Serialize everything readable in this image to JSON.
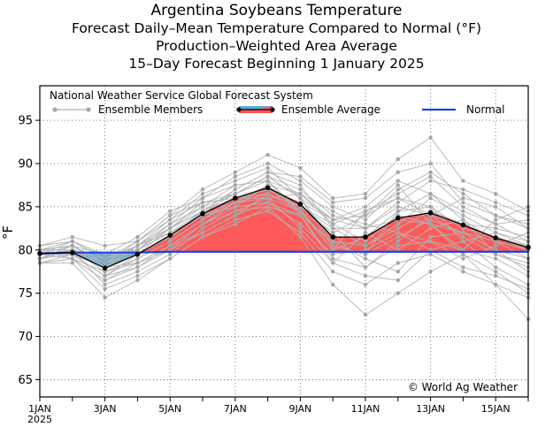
{
  "chart_data": {
    "type": "line",
    "title": "Argentina Soybeans Temperature",
    "subtitle_lines": [
      "Forecast Daily–Mean Temperature Compared to Normal (°F)",
      "Production–Weighted Area Average",
      "15–Day Forecast Beginning 1 January 2025"
    ],
    "source_label": "National Weather Service Global Forecast System",
    "legend": {
      "members": "Ensemble Members",
      "average": "Ensemble Average",
      "normal": "Normal"
    },
    "credit": "© World Ag Weather",
    "ylabel": "°F",
    "ylim": [
      63,
      99
    ],
    "yticks": [
      65,
      70,
      75,
      80,
      85,
      90,
      95
    ],
    "xlim": [
      1,
      16
    ],
    "xticks": [
      {
        "x": 1,
        "label": "1JAN",
        "label2": "2025"
      },
      {
        "x": 3,
        "label": "3JAN"
      },
      {
        "x": 5,
        "label": "5JAN"
      },
      {
        "x": 7,
        "label": "7JAN"
      },
      {
        "x": 9,
        "label": "9JAN"
      },
      {
        "x": 11,
        "label": "11JAN"
      },
      {
        "x": 13,
        "label": "13JAN"
      },
      {
        "x": 15,
        "label": "15JAN"
      }
    ],
    "x": [
      1,
      2,
      3,
      4,
      5,
      6,
      7,
      8,
      9,
      10,
      11,
      12,
      13,
      14,
      15,
      16
    ],
    "normal": [
      79.6,
      79.7,
      79.7,
      79.7,
      79.8,
      79.8,
      79.8,
      79.8,
      79.8,
      79.8,
      79.8,
      79.8,
      79.8,
      79.8,
      79.8,
      79.8
    ],
    "average": [
      79.6,
      79.7,
      77.9,
      79.5,
      81.7,
      84.2,
      86.0,
      87.2,
      85.3,
      81.5,
      81.5,
      83.7,
      84.3,
      82.9,
      81.4,
      80.3
    ],
    "members": [
      [
        79.0,
        80.5,
        78.0,
        80.5,
        82.5,
        85.5,
        86.5,
        88.0,
        84.5,
        80.0,
        84.5,
        86.5,
        88.5,
        85.0,
        83.0,
        81.0
      ],
      [
        79.5,
        79.0,
        76.5,
        78.5,
        80.0,
        83.0,
        84.5,
        86.0,
        86.5,
        83.0,
        81.0,
        84.0,
        83.0,
        79.5,
        77.5,
        75.0
      ],
      [
        80.0,
        81.0,
        79.0,
        80.0,
        83.0,
        86.0,
        88.5,
        90.0,
        88.0,
        85.0,
        83.5,
        87.0,
        89.0,
        86.5,
        84.0,
        82.5
      ],
      [
        78.5,
        79.5,
        77.0,
        78.0,
        80.5,
        82.0,
        84.0,
        85.5,
        84.0,
        79.0,
        78.0,
        80.5,
        81.0,
        80.0,
        79.0,
        77.0
      ],
      [
        79.5,
        80.0,
        78.5,
        79.5,
        81.5,
        84.5,
        87.0,
        89.0,
        87.5,
        82.5,
        80.5,
        82.5,
        84.5,
        83.0,
        81.5,
        80.0
      ],
      [
        80.5,
        81.5,
        80.5,
        81.0,
        84.0,
        87.0,
        89.0,
        91.0,
        89.5,
        86.0,
        86.5,
        90.5,
        93.0,
        88.0,
        86.5,
        84.5
      ],
      [
        78.5,
        78.5,
        74.5,
        76.5,
        79.0,
        81.5,
        83.5,
        84.5,
        82.0,
        77.5,
        76.0,
        78.5,
        79.5,
        77.5,
        76.0,
        74.5
      ],
      [
        79.5,
        80.0,
        78.0,
        80.5,
        82.5,
        85.0,
        86.5,
        88.5,
        86.0,
        80.5,
        79.5,
        81.5,
        83.5,
        82.0,
        80.0,
        79.0
      ],
      [
        80.0,
        79.0,
        77.5,
        79.0,
        81.0,
        83.5,
        86.0,
        87.0,
        85.5,
        83.5,
        85.0,
        88.0,
        86.5,
        84.5,
        83.0,
        83.5
      ],
      [
        79.0,
        80.5,
        79.5,
        81.5,
        84.5,
        86.0,
        87.5,
        88.0,
        84.0,
        78.5,
        77.0,
        76.5,
        80.0,
        81.0,
        82.0,
        80.5
      ],
      [
        79.5,
        79.5,
        78.0,
        78.5,
        80.5,
        83.0,
        85.5,
        86.5,
        85.0,
        82.0,
        84.0,
        86.0,
        84.0,
        81.5,
        79.5,
        78.0
      ],
      [
        79.0,
        80.0,
        76.0,
        77.5,
        79.5,
        82.5,
        84.5,
        85.0,
        81.5,
        76.0,
        72.5,
        75.0,
        77.5,
        79.5,
        76.0,
        72.0
      ],
      [
        80.0,
        80.5,
        78.5,
        80.0,
        82.0,
        84.0,
        85.5,
        87.5,
        86.5,
        84.5,
        82.5,
        85.5,
        88.0,
        87.0,
        85.5,
        84.0
      ],
      [
        79.5,
        81.0,
        79.0,
        80.5,
        83.5,
        86.5,
        88.0,
        89.5,
        86.0,
        81.0,
        80.5,
        83.0,
        86.0,
        84.0,
        82.0,
        81.0
      ],
      [
        78.5,
        79.0,
        76.5,
        78.0,
        80.0,
        82.0,
        84.0,
        86.5,
        84.5,
        80.5,
        79.5,
        84.5,
        85.0,
        81.0,
        78.0,
        76.0
      ],
      [
        79.0,
        79.5,
        77.0,
        79.0,
        81.0,
        83.5,
        85.5,
        86.0,
        82.5,
        78.5,
        82.0,
        80.0,
        82.5,
        83.5,
        81.0,
        79.0
      ],
      [
        80.0,
        80.0,
        79.0,
        80.5,
        82.0,
        84.5,
        86.5,
        88.5,
        87.0,
        84.0,
        83.0,
        82.0,
        81.0,
        79.0,
        80.5,
        82.0
      ],
      [
        79.5,
        80.5,
        78.5,
        81.0,
        84.0,
        85.5,
        86.0,
        87.0,
        85.0,
        83.0,
        84.5,
        86.0,
        85.0,
        82.5,
        81.5,
        80.5
      ],
      [
        79.0,
        80.0,
        77.5,
        78.5,
        80.5,
        83.0,
        85.0,
        85.5,
        83.0,
        79.5,
        80.0,
        82.0,
        80.0,
        78.0,
        77.0,
        75.5
      ],
      [
        79.5,
        79.5,
        78.0,
        79.5,
        82.5,
        84.5,
        86.0,
        86.0,
        84.5,
        82.0,
        78.0,
        81.0,
        84.0,
        86.0,
        85.0,
        82.5
      ],
      [
        80.5,
        81.0,
        79.5,
        80.0,
        82.0,
        84.0,
        87.0,
        89.0,
        88.5,
        85.5,
        86.0,
        89.0,
        90.0,
        85.5,
        84.0,
        83.0
      ],
      [
        78.5,
        79.0,
        75.5,
        77.0,
        79.0,
        81.5,
        83.0,
        85.0,
        84.0,
        81.0,
        79.0,
        77.5,
        81.5,
        82.0,
        80.0,
        77.5
      ],
      [
        79.5,
        80.0,
        78.5,
        80.5,
        83.0,
        85.0,
        87.5,
        88.0,
        86.5,
        83.5,
        84.0,
        87.5,
        83.0,
        80.0,
        83.5,
        85.0
      ],
      [
        79.0,
        79.5,
        77.0,
        79.5,
        81.5,
        84.0,
        85.0,
        87.5,
        84.5,
        80.0,
        81.5,
        84.5,
        86.5,
        83.5,
        79.5,
        78.5
      ],
      [
        80.0,
        80.5,
        78.0,
        80.0,
        82.5,
        84.5,
        86.5,
        88.5,
        86.0,
        83.5,
        82.5,
        83.5,
        83.0,
        82.0,
        81.0,
        80.0
      ],
      [
        79.5,
        80.0,
        79.0,
        81.0,
        83.5,
        85.5,
        86.0,
        86.5,
        85.0,
        82.5,
        82.5,
        85.0,
        84.0,
        83.0,
        82.5,
        81.5
      ]
    ]
  }
}
